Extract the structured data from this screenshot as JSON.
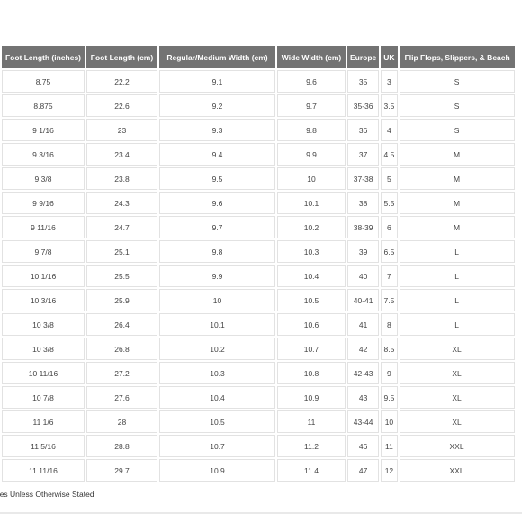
{
  "table": {
    "headers": [
      "",
      "Foot Length (inches)",
      "Foot Length (cm)",
      "Regular/Medium Width (cm)",
      "Wide Width (cm)",
      "Europe",
      "UK",
      "Flip Flops, Slippers, & Beach"
    ],
    "rows": [
      [
        "",
        "8.75",
        "22.2",
        "9.1",
        "9.6",
        "35",
        "3",
        "S"
      ],
      [
        "",
        "8.875",
        "22.6",
        "9.2",
        "9.7",
        "35-36",
        "3.5",
        "S"
      ],
      [
        "",
        "9 1/16",
        "23",
        "9.3",
        "9.8",
        "36",
        "4",
        "S"
      ],
      [
        "",
        "9 3/16",
        "23.4",
        "9.4",
        "9.9",
        "37",
        "4.5",
        "M"
      ],
      [
        "",
        "9 3/8",
        "23.8",
        "9.5",
        "10",
        "37-38",
        "5",
        "M"
      ],
      [
        "",
        "9 9/16",
        "24.3",
        "9.6",
        "10.1",
        "38",
        "5.5",
        "M"
      ],
      [
        "",
        "9 11/16",
        "24.7",
        "9.7",
        "10.2",
        "38-39",
        "6",
        "M"
      ],
      [
        "",
        "9 7/8",
        "25.1",
        "9.8",
        "10.3",
        "39",
        "6.5",
        "L"
      ],
      [
        "",
        "10 1/16",
        "25.5",
        "9.9",
        "10.4",
        "40",
        "7",
        "L"
      ],
      [
        "",
        "10 3/16",
        "25.9",
        "10",
        "10.5",
        "40-41",
        "7.5",
        "L"
      ],
      [
        "",
        "10 3/8",
        "26.4",
        "10.1",
        "10.6",
        "41",
        "8",
        "L"
      ],
      [
        "",
        "10 3/8",
        "26.8",
        "10.2",
        "10.7",
        "42",
        "8.5",
        "XL"
      ],
      [
        "",
        "10 11/16",
        "27.2",
        "10.3",
        "10.8",
        "42-43",
        "9",
        "XL"
      ],
      [
        "",
        "10 7/8",
        "27.6",
        "10.4",
        "10.9",
        "43",
        "9.5",
        "XL"
      ],
      [
        "",
        "11 1/6",
        "28",
        "10.5",
        "11",
        "43-44",
        "10",
        "XL"
      ],
      [
        "",
        "11 5/16",
        "28.8",
        "10.7",
        "11.2",
        "46",
        "11",
        "XXL"
      ],
      [
        "",
        "11 11/16",
        "29.7",
        "10.9",
        "11.4",
        "47",
        "12",
        "XXL"
      ]
    ]
  },
  "footnote": "nches Unless Otherwise Stated"
}
